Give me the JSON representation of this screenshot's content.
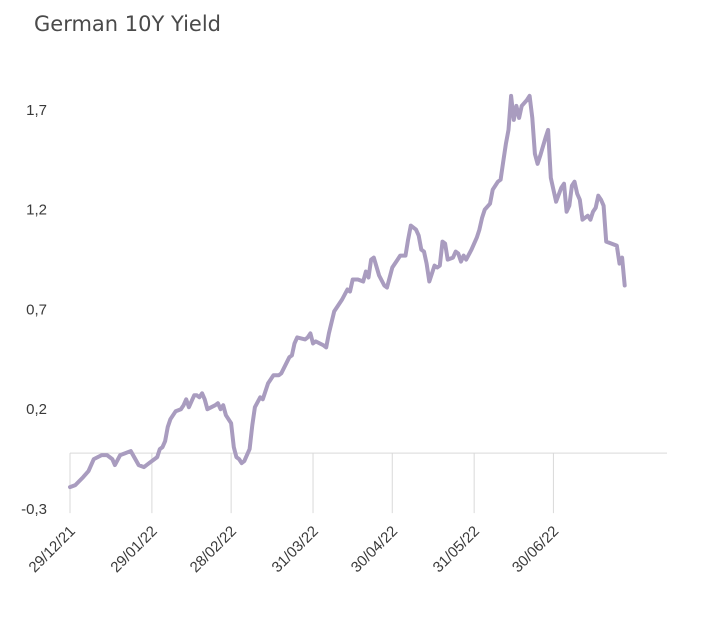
{
  "chart_data": {
    "type": "line",
    "title": "German 10Y Yield",
    "xlabel": "",
    "ylabel": "",
    "ylim": [
      -0.3,
      1.9
    ],
    "yticks": [
      "1,7",
      "1,2",
      "0,7",
      "0,2",
      "-0,3"
    ],
    "ytick_values": [
      1.7,
      1.2,
      0.7,
      0.2,
      -0.3
    ],
    "x_range": [
      "2021-12-29",
      "2022-08-12"
    ],
    "xticks": [
      "29/12/21",
      "29/01/22",
      "28/02/22",
      "31/03/22",
      "30/04/22",
      "31/05/22",
      "30/06/22"
    ],
    "xtick_dates": [
      "2021-12-29",
      "2022-01-29",
      "2022-02-28",
      "2022-03-31",
      "2022-04-30",
      "2022-05-31",
      "2022-06-30"
    ],
    "grid": false,
    "line_color": "#a99cbf",
    "series": [
      {
        "values": [
          [
            "2021-12-29",
            -0.19
          ],
          [
            "2021-12-31",
            -0.18
          ],
          [
            "2022-01-03",
            -0.14
          ],
          [
            "2022-01-05",
            -0.11
          ],
          [
            "2022-01-07",
            -0.05
          ],
          [
            "2022-01-10",
            -0.03
          ],
          [
            "2022-01-12",
            -0.03
          ],
          [
            "2022-01-14",
            -0.05
          ],
          [
            "2022-01-15",
            -0.08
          ],
          [
            "2022-01-17",
            -0.03
          ],
          [
            "2022-01-19",
            -0.02
          ],
          [
            "2022-01-21",
            -0.01
          ],
          [
            "2022-01-24",
            -0.08
          ],
          [
            "2022-01-26",
            -0.09
          ],
          [
            "2022-01-28",
            -0.07
          ],
          [
            "2022-01-31",
            -0.04
          ],
          [
            "2022-02-01",
            0.0
          ],
          [
            "2022-02-02",
            0.01
          ],
          [
            "2022-02-03",
            0.04
          ],
          [
            "2022-02-04",
            0.11
          ],
          [
            "2022-02-05",
            0.15
          ],
          [
            "2022-02-07",
            0.19
          ],
          [
            "2022-02-09",
            0.2
          ],
          [
            "2022-02-10",
            0.22
          ],
          [
            "2022-02-11",
            0.25
          ],
          [
            "2022-02-12",
            0.21
          ],
          [
            "2022-02-14",
            0.27
          ],
          [
            "2022-02-15",
            0.27
          ],
          [
            "2022-02-16",
            0.26
          ],
          [
            "2022-02-17",
            0.28
          ],
          [
            "2022-02-18",
            0.25
          ],
          [
            "2022-02-19",
            0.2
          ],
          [
            "2022-02-22",
            0.22
          ],
          [
            "2022-02-23",
            0.23
          ],
          [
            "2022-02-24",
            0.2
          ],
          [
            "2022-02-25",
            0.22
          ],
          [
            "2022-02-26",
            0.17
          ],
          [
            "2022-02-28",
            0.13
          ],
          [
            "2022-03-01",
            0.01
          ],
          [
            "2022-03-02",
            -0.04
          ],
          [
            "2022-03-03",
            -0.05
          ],
          [
            "2022-03-04",
            -0.07
          ],
          [
            "2022-03-05",
            -0.06
          ],
          [
            "2022-03-07",
            0.0
          ],
          [
            "2022-03-08",
            0.12
          ],
          [
            "2022-03-09",
            0.21
          ],
          [
            "2022-03-11",
            0.26
          ],
          [
            "2022-03-12",
            0.25
          ],
          [
            "2022-03-14",
            0.33
          ],
          [
            "2022-03-15",
            0.35
          ],
          [
            "2022-03-16",
            0.37
          ],
          [
            "2022-03-18",
            0.37
          ],
          [
            "2022-03-19",
            0.38
          ],
          [
            "2022-03-22",
            0.46
          ],
          [
            "2022-03-23",
            0.47
          ],
          [
            "2022-03-24",
            0.53
          ],
          [
            "2022-03-25",
            0.56
          ],
          [
            "2022-03-28",
            0.55
          ],
          [
            "2022-03-29",
            0.56
          ],
          [
            "2022-03-30",
            0.58
          ],
          [
            "2022-03-31",
            0.53
          ],
          [
            "2022-04-01",
            0.54
          ],
          [
            "2022-04-04",
            0.52
          ],
          [
            "2022-04-05",
            0.51
          ],
          [
            "2022-04-06",
            0.58
          ],
          [
            "2022-04-08",
            0.69
          ],
          [
            "2022-04-11",
            0.75
          ],
          [
            "2022-04-13",
            0.8
          ],
          [
            "2022-04-14",
            0.79
          ],
          [
            "2022-04-15",
            0.85
          ],
          [
            "2022-04-17",
            0.85
          ],
          [
            "2022-04-19",
            0.84
          ],
          [
            "2022-04-20",
            0.89
          ],
          [
            "2022-04-21",
            0.86
          ],
          [
            "2022-04-22",
            0.95
          ],
          [
            "2022-04-23",
            0.96
          ],
          [
            "2022-04-25",
            0.87
          ],
          [
            "2022-04-27",
            0.82
          ],
          [
            "2022-04-28",
            0.81
          ],
          [
            "2022-04-30",
            0.91
          ],
          [
            "2022-05-02",
            0.95
          ],
          [
            "2022-05-03",
            0.97
          ],
          [
            "2022-05-05",
            0.97
          ],
          [
            "2022-05-06",
            1.05
          ],
          [
            "2022-05-07",
            1.12
          ],
          [
            "2022-05-09",
            1.1
          ],
          [
            "2022-05-10",
            1.07
          ],
          [
            "2022-05-11",
            1.0
          ],
          [
            "2022-05-12",
            0.99
          ],
          [
            "2022-05-13",
            0.93
          ],
          [
            "2022-05-14",
            0.84
          ],
          [
            "2022-05-16",
            0.92
          ],
          [
            "2022-05-17",
            0.91
          ],
          [
            "2022-05-18",
            0.92
          ],
          [
            "2022-05-19",
            1.04
          ],
          [
            "2022-05-20",
            1.03
          ],
          [
            "2022-05-21",
            0.95
          ],
          [
            "2022-05-23",
            0.96
          ],
          [
            "2022-05-24",
            0.99
          ],
          [
            "2022-05-25",
            0.98
          ],
          [
            "2022-05-26",
            0.94
          ],
          [
            "2022-05-27",
            0.97
          ],
          [
            "2022-05-28",
            0.95
          ],
          [
            "2022-05-30",
            1.0
          ],
          [
            "2022-06-01",
            1.06
          ],
          [
            "2022-06-02",
            1.1
          ],
          [
            "2022-06-03",
            1.16
          ],
          [
            "2022-06-04",
            1.2
          ],
          [
            "2022-06-06",
            1.23
          ],
          [
            "2022-06-07",
            1.3
          ],
          [
            "2022-06-08",
            1.32
          ],
          [
            "2022-06-09",
            1.34
          ],
          [
            "2022-06-10",
            1.35
          ],
          [
            "2022-06-11",
            1.44
          ],
          [
            "2022-06-12",
            1.53
          ],
          [
            "2022-06-13",
            1.6
          ],
          [
            "2022-06-14",
            1.77
          ],
          [
            "2022-06-15",
            1.65
          ],
          [
            "2022-06-16",
            1.72
          ],
          [
            "2022-06-17",
            1.66
          ],
          [
            "2022-06-18",
            1.72
          ],
          [
            "2022-06-20",
            1.75
          ],
          [
            "2022-06-21",
            1.77
          ],
          [
            "2022-06-22",
            1.66
          ],
          [
            "2022-06-23",
            1.48
          ],
          [
            "2022-06-24",
            1.43
          ],
          [
            "2022-06-25",
            1.47
          ],
          [
            "2022-06-27",
            1.56
          ],
          [
            "2022-06-28",
            1.6
          ],
          [
            "2022-06-29",
            1.36
          ],
          [
            "2022-07-01",
            1.24
          ],
          [
            "2022-07-03",
            1.31
          ],
          [
            "2022-07-04",
            1.33
          ],
          [
            "2022-07-05",
            1.19
          ],
          [
            "2022-07-06",
            1.22
          ],
          [
            "2022-07-07",
            1.32
          ],
          [
            "2022-07-08",
            1.34
          ],
          [
            "2022-07-09",
            1.28
          ],
          [
            "2022-07-10",
            1.25
          ],
          [
            "2022-07-11",
            1.15
          ],
          [
            "2022-07-13",
            1.17
          ],
          [
            "2022-07-14",
            1.15
          ],
          [
            "2022-07-15",
            1.19
          ],
          [
            "2022-07-16",
            1.21
          ],
          [
            "2022-07-17",
            1.27
          ],
          [
            "2022-07-18",
            1.25
          ],
          [
            "2022-07-19",
            1.22
          ],
          [
            "2022-07-20",
            1.04
          ],
          [
            "2022-07-22",
            1.03
          ],
          [
            "2022-07-24",
            1.02
          ],
          [
            "2022-07-25",
            0.93
          ],
          [
            "2022-07-26",
            0.96
          ],
          [
            "2022-07-27",
            0.82
          ]
        ]
      }
    ]
  }
}
